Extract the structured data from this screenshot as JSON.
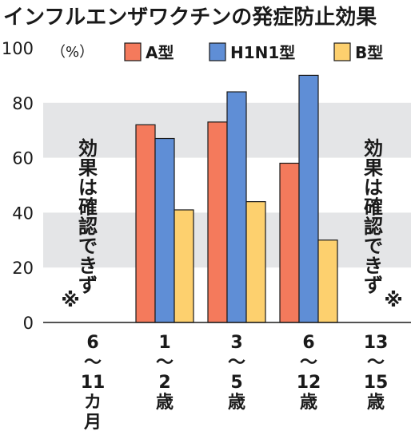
{
  "chart_data": {
    "type": "bar",
    "title": "インフルエンザワクチンの発症防止効果",
    "unit": "（%）",
    "ylim": [
      0,
      100
    ],
    "yticks": [
      0,
      20,
      40,
      60,
      80,
      100
    ],
    "ytick_labels": [
      "0",
      "20",
      "40",
      "60",
      "80",
      "100"
    ],
    "grid": "alternating horizontal bands",
    "legend_position": "top-right",
    "categories": [
      "6〜11カ月",
      "1〜2歳",
      "3〜5歳",
      "6〜12歳",
      "13〜15歳"
    ],
    "category_label_lines": [
      [
        "6",
        "〜",
        "11",
        "カ",
        "月"
      ],
      [
        "1",
        "〜",
        "2",
        "歳"
      ],
      [
        "3",
        "〜",
        "5",
        "歳"
      ],
      [
        "6",
        "〜",
        "12",
        "歳"
      ],
      [
        "13",
        "〜",
        "15",
        "歳"
      ]
    ],
    "series": [
      {
        "name": "A型",
        "color": "#f47a5c",
        "values": [
          null,
          72,
          73,
          58,
          null
        ]
      },
      {
        "name": "H1N1型",
        "color": "#5f8ed6",
        "values": [
          null,
          67,
          84,
          90,
          null
        ]
      },
      {
        "name": "B型",
        "color": "#fdd06e",
        "values": [
          null,
          41,
          44,
          30,
          null
        ]
      }
    ],
    "annotations": [
      {
        "category": "6〜11カ月",
        "text": "効果は確認できず",
        "mark": "※"
      },
      {
        "category": "13〜15歳",
        "text": "効果は確認できず",
        "mark": "※"
      }
    ]
  }
}
